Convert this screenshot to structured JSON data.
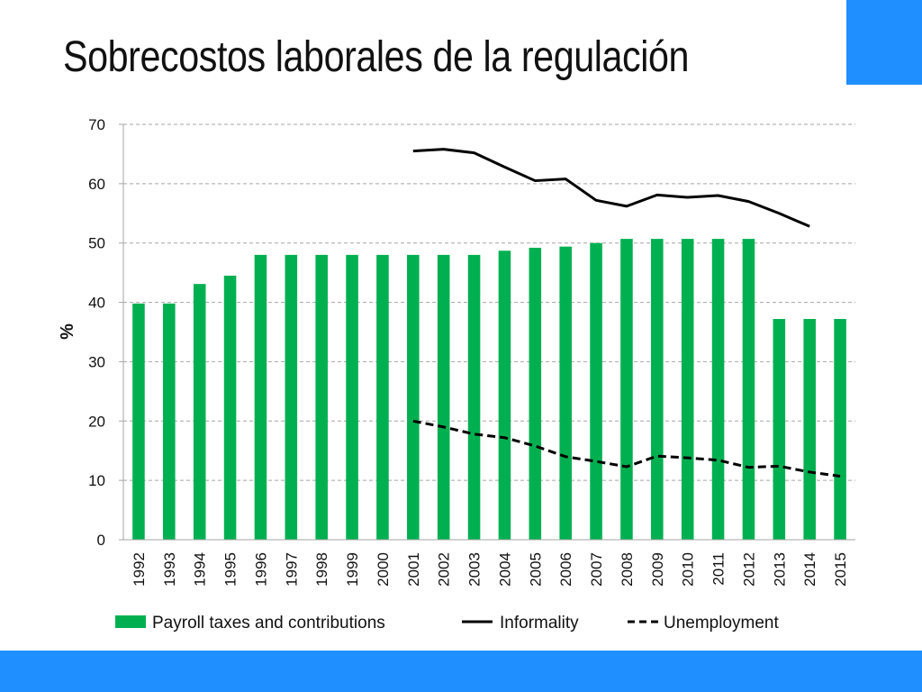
{
  "slide": {
    "title": "Sobrecostos laborales de la regulación"
  },
  "colors": {
    "band": "#1f8fff",
    "bar": "#00b050",
    "line": "#000000",
    "grid": "#a6a6a6"
  },
  "chart_data": {
    "type": "bar",
    "categories": [
      "1992",
      "1993",
      "1994",
      "1995",
      "1996",
      "1997",
      "1998",
      "1999",
      "2000",
      "2001",
      "2002",
      "2003",
      "2004",
      "2005",
      "2006",
      "2007",
      "2008",
      "2009",
      "2010",
      "2011",
      "2012",
      "2013",
      "2014",
      "2015"
    ],
    "ylabel": "%",
    "ylim": [
      0,
      70
    ],
    "yticks": [
      0,
      10,
      20,
      30,
      40,
      50,
      60,
      70
    ],
    "grid": true,
    "legend_position": "bottom",
    "series": [
      {
        "name": "Payroll taxes and contributions",
        "type": "bar",
        "color": "#00b050",
        "values": [
          39.8,
          39.8,
          43.1,
          44.5,
          48,
          48,
          48,
          48,
          48,
          48,
          48,
          48,
          48.7,
          49.2,
          49.4,
          50,
          50.7,
          50.7,
          50.7,
          50.7,
          50.7,
          37.2,
          37.2,
          37.2
        ]
      },
      {
        "name": "Informality",
        "type": "line",
        "style": "solid",
        "color": "#000000",
        "values": [
          null,
          null,
          null,
          null,
          null,
          null,
          null,
          null,
          null,
          65.5,
          65.8,
          65.2,
          62.8,
          60.5,
          60.8,
          57.2,
          56.2,
          58.1,
          57.7,
          58,
          57,
          55,
          52.8,
          null
        ]
      },
      {
        "name": "Unemployment",
        "type": "line",
        "style": "dashed",
        "color": "#000000",
        "values": [
          null,
          null,
          null,
          null,
          null,
          null,
          null,
          null,
          null,
          20,
          19,
          17.8,
          17.2,
          15.8,
          14,
          13.2,
          12.3,
          14.1,
          13.8,
          13.4,
          12.2,
          12.4,
          11.4,
          10.7
        ]
      }
    ]
  }
}
